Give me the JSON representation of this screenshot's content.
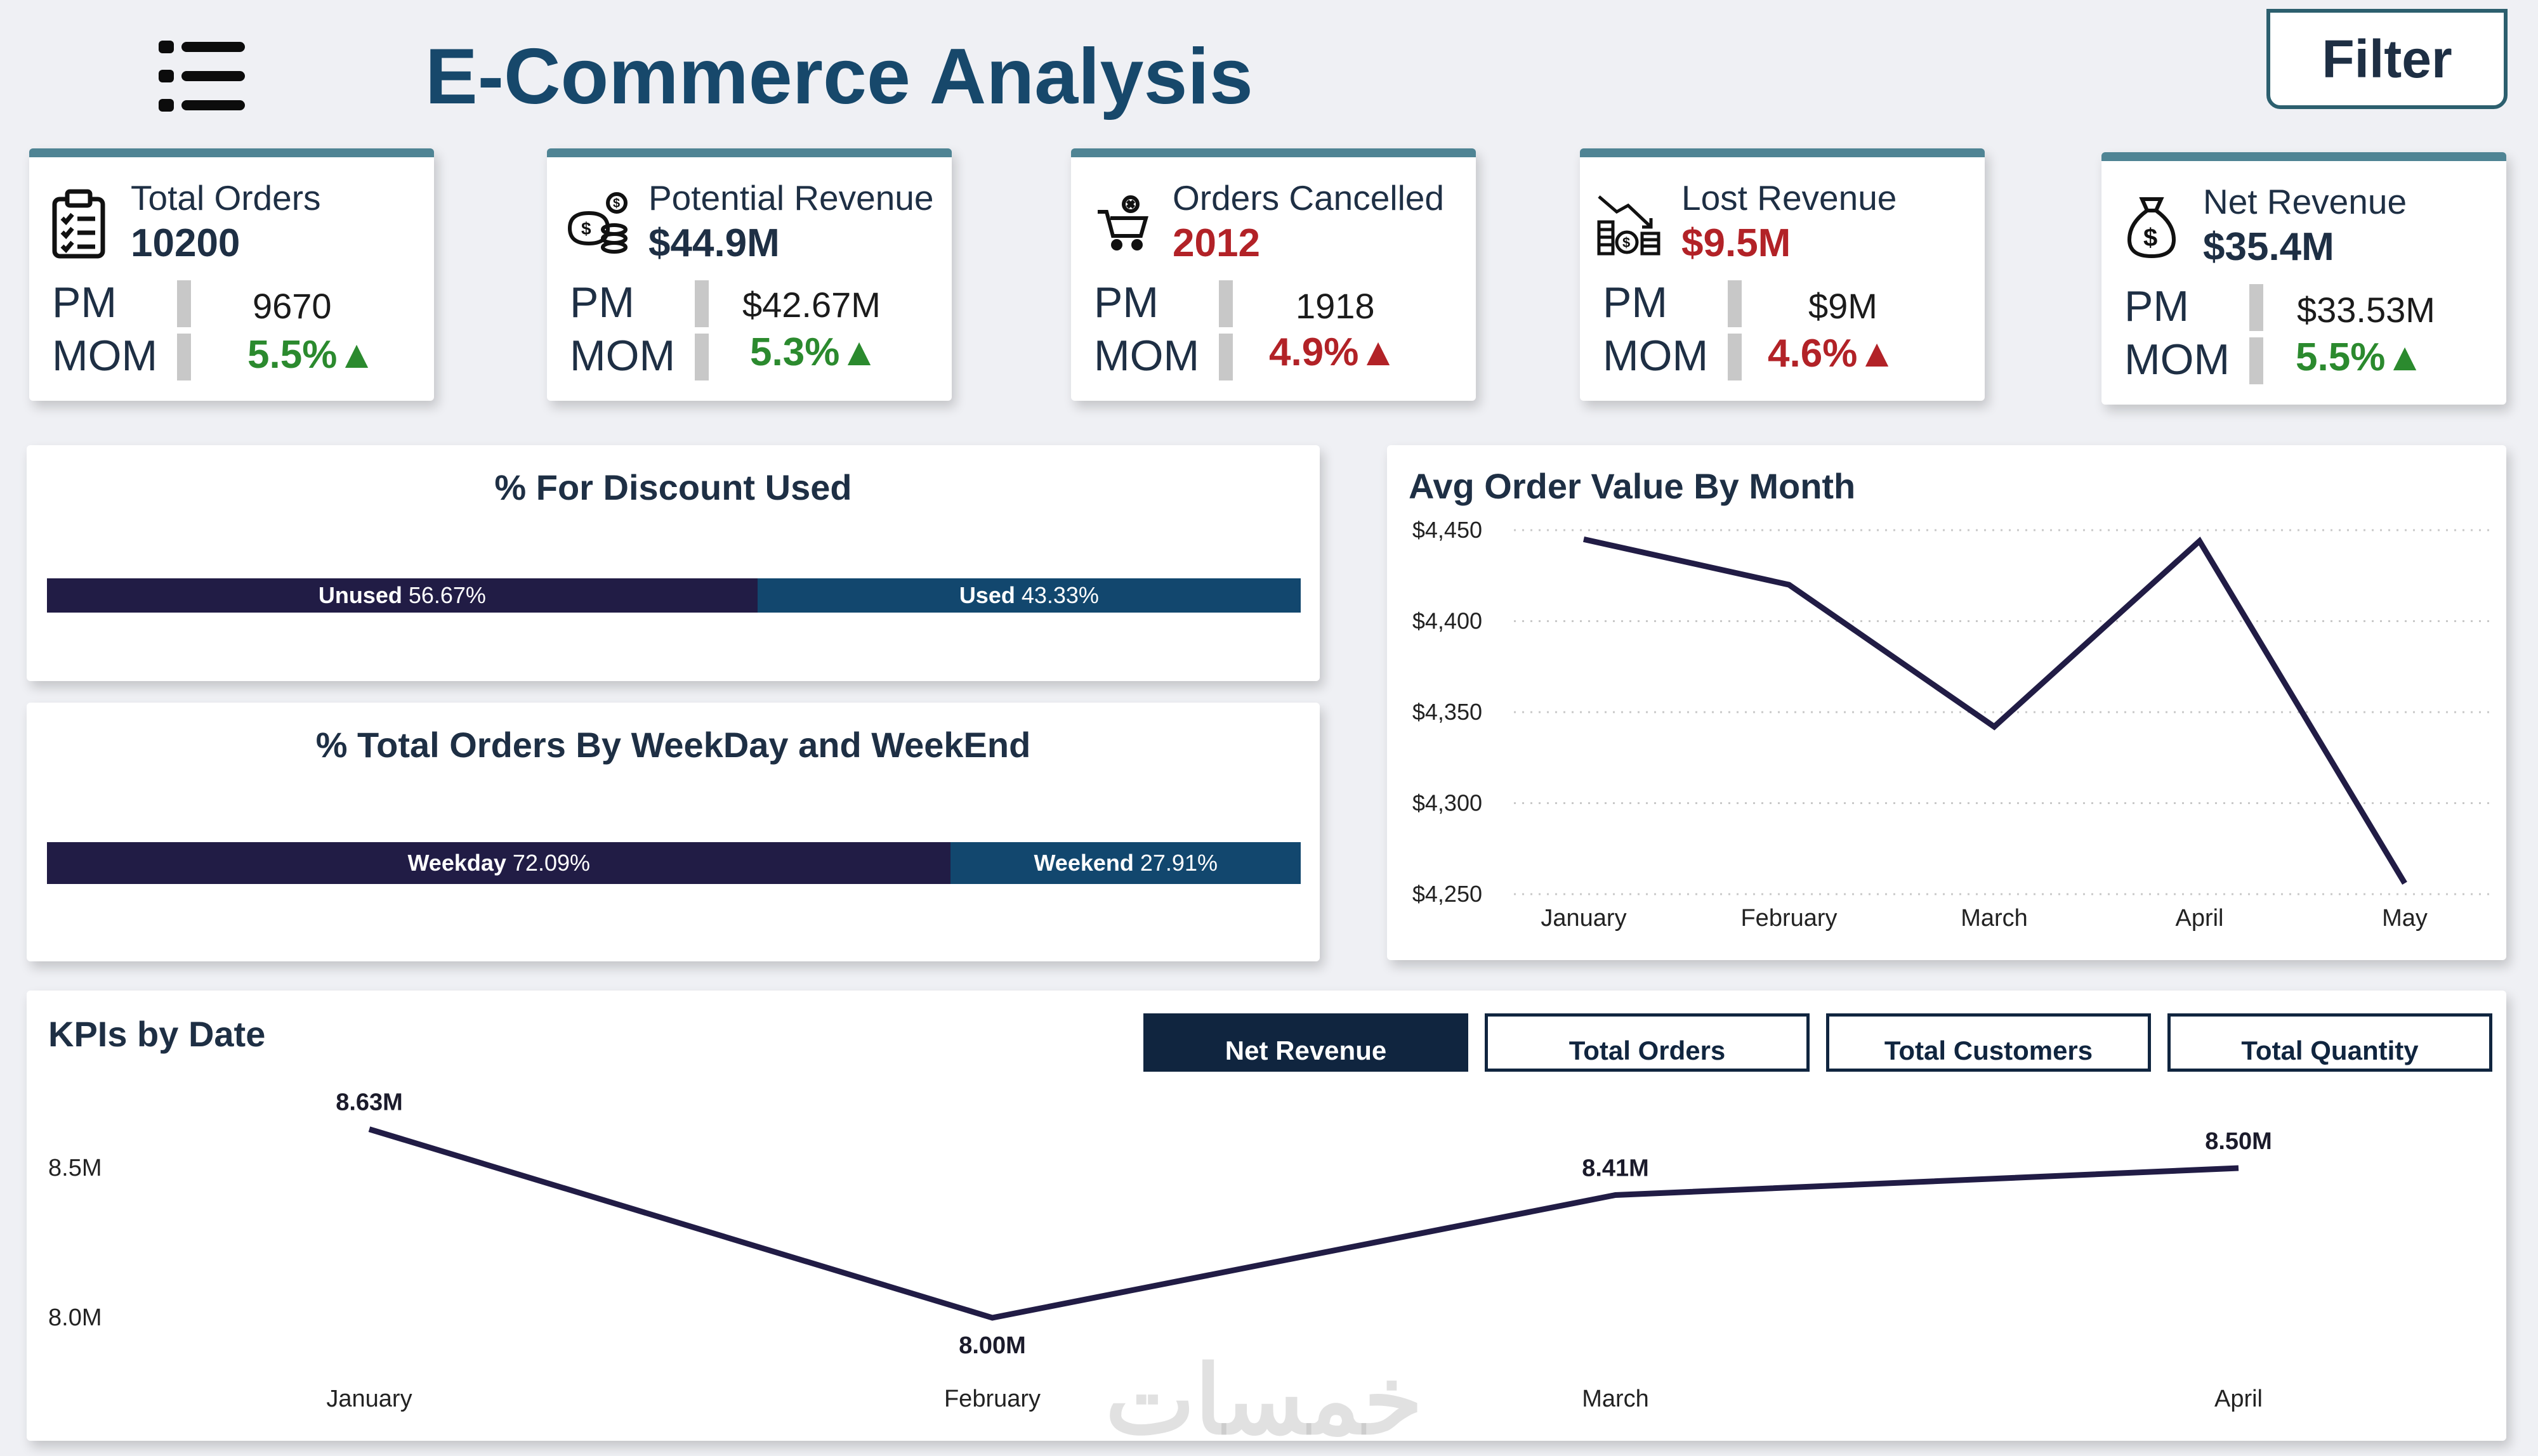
{
  "header": {
    "title": "E-Commerce Analysis",
    "filter_label": "Filter",
    "menu_icon": "list-menu-icon"
  },
  "kpis": [
    {
      "title": "Total Orders",
      "value": "10200",
      "value_color": "#1e2f44",
      "pm_label": "PM",
      "pm_value": "9670",
      "mom_label": "MOM",
      "mom_value": "5.5%",
      "trend": "up",
      "trend_color": "#2b8a2e",
      "icon": "clipboard-checklist-icon"
    },
    {
      "title": "Potential Revenue",
      "value": "$44.9M",
      "value_color": "#1e2f44",
      "pm_label": "PM",
      "pm_value": "$42.67M",
      "mom_label": "MOM",
      "mom_value": "5.3%",
      "trend": "up",
      "trend_color": "#2b8a2e",
      "icon": "money-coins-icon"
    },
    {
      "title": "Orders Cancelled",
      "value": "2012",
      "value_color": "#b22227",
      "pm_label": "PM",
      "pm_value": "1918",
      "mom_label": "MOM",
      "mom_value": "4.9%",
      "trend": "up",
      "trend_color": "#b22227",
      "icon": "cart-cancel-icon"
    },
    {
      "title": "Lost Revenue",
      "value": "$9.5M",
      "value_color": "#b22227",
      "pm_label": "PM",
      "pm_value": "$9M",
      "mom_label": "MOM",
      "mom_value": "4.6%",
      "trend": "up",
      "trend_color": "#b22227",
      "icon": "coin-stack-decline-icon"
    },
    {
      "title": "Net Revenue",
      "value": "$35.4M",
      "value_color": "#1e2f44",
      "pm_label": "PM",
      "pm_value": "$33.53M",
      "mom_label": "MOM",
      "mom_value": "5.5%",
      "trend": "up",
      "trend_color": "#2b8a2e",
      "icon": "money-bag-icon"
    }
  ],
  "discount": {
    "title": "% For Discount Used",
    "segments": [
      {
        "label": "Unused",
        "value": "56.67%",
        "share": 56.67,
        "color": "#211c45"
      },
      {
        "label": "Used",
        "value": "43.33%",
        "share": 43.33,
        "color": "#12476e"
      }
    ]
  },
  "weekday": {
    "title": "% Total Orders By WeekDay and WeekEnd",
    "segments": [
      {
        "label": "Weekday",
        "value": "72.09%",
        "share": 72.09,
        "color": "#211c45"
      },
      {
        "label": "Weekend",
        "value": "27.91%",
        "share": 27.91,
        "color": "#12476e"
      }
    ]
  },
  "kpis_by_date": {
    "title": "KPIs by Date",
    "buttons": [
      "Net Revenue",
      "Total Orders",
      "Total Customers",
      "Total Quantity"
    ],
    "active_button": "Net Revenue"
  },
  "watermark": "خمسات",
  "chart_data": [
    {
      "type": "line",
      "title": "Avg Order Value By Month",
      "categories": [
        "January",
        "February",
        "March",
        "April",
        "May"
      ],
      "values": [
        4445,
        4420,
        4342,
        4444,
        4256
      ],
      "ylim": [
        4250,
        4450
      ],
      "yticks": [
        "$4,450",
        "$4,400",
        "$4,350",
        "$4,300",
        "$4,250"
      ],
      "ytick_values": [
        4450,
        4400,
        4350,
        4300,
        4250
      ],
      "grid": true,
      "line_color": "#211c45"
    },
    {
      "type": "line",
      "title": "KPIs by Date",
      "categories": [
        "January",
        "February",
        "March",
        "April"
      ],
      "values": [
        8.63,
        8.0,
        8.41,
        8.5
      ],
      "data_labels": [
        "8.63M",
        "8.00M",
        "8.41M",
        "8.50M"
      ],
      "yticks": [
        "8.5M",
        "8.0M"
      ],
      "ytick_values": [
        8.5,
        8.0
      ],
      "grid": false,
      "line_color": "#211c45"
    }
  ]
}
